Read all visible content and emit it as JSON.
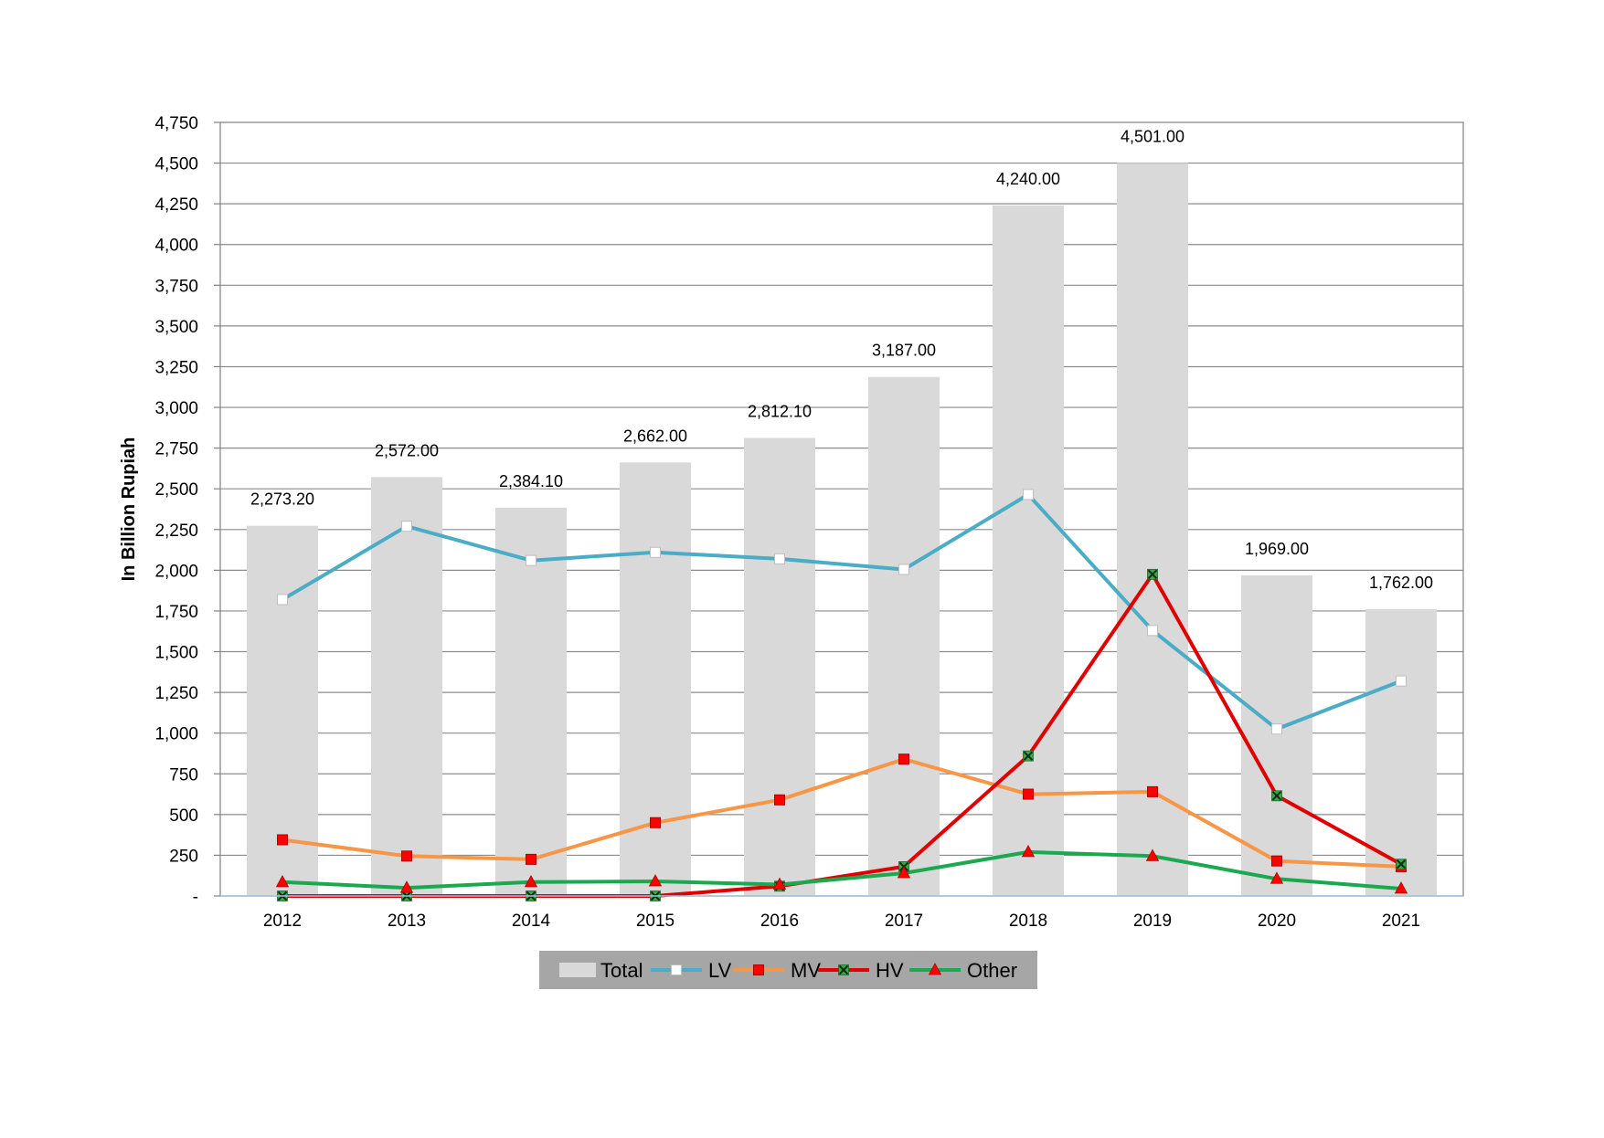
{
  "chart_data": {
    "type": "bar",
    "title": "",
    "xlabel": "",
    "ylabel": "In Billion Rupiah",
    "ylim": [
      0,
      4750
    ],
    "ytick_step": 250,
    "yticks": [
      "-",
      "250",
      "500",
      "750",
      "1,000",
      "1,250",
      "1,500",
      "1,750",
      "2,000",
      "2,250",
      "2,500",
      "2,750",
      "3,000",
      "3,250",
      "3,500",
      "3,750",
      "4,000",
      "4,250",
      "4,500",
      "4,750"
    ],
    "grid": true,
    "legend_position": "bottom",
    "categories": [
      "2012",
      "2013",
      "2014",
      "2015",
      "2016",
      "2017",
      "2018",
      "2019",
      "2020",
      "2021"
    ],
    "series": [
      {
        "name": "Total",
        "kind": "bar",
        "color": "#d9d9d9",
        "values": [
          2273.2,
          2572.0,
          2384.1,
          2662.0,
          2812.1,
          3187.0,
          4240.0,
          4501.0,
          1969.0,
          1762.0
        ],
        "labels": [
          "2,273.20",
          "2,572.00",
          "2,384.10",
          "2,662.00",
          "2,812.10",
          "3,187.00",
          "4,240.00",
          "4,501.00",
          "1,969.00",
          "1,762.00"
        ]
      },
      {
        "name": "LV",
        "kind": "line",
        "color": "#4bacc6",
        "marker": "square",
        "marker_color": "#ffffff",
        "values": [
          1820,
          2270,
          2060,
          2110,
          2070,
          2005,
          2465,
          1630,
          1025,
          1320
        ]
      },
      {
        "name": "MV",
        "kind": "line",
        "color": "#f79646",
        "marker": "square",
        "marker_color": "#ff0000",
        "values": [
          345,
          245,
          225,
          450,
          590,
          840,
          625,
          640,
          215,
          180
        ]
      },
      {
        "name": "HV",
        "kind": "line",
        "color": "#e00000",
        "marker": "x",
        "marker_color": "#1a7a3a",
        "values": [
          0,
          0,
          0,
          0,
          60,
          180,
          860,
          1975,
          615,
          195
        ]
      },
      {
        "name": "Other",
        "kind": "line",
        "color": "#1aa94e",
        "marker": "triangle",
        "marker_color": "#ff0000",
        "values": [
          85,
          50,
          85,
          90,
          70,
          140,
          270,
          245,
          105,
          45
        ]
      }
    ]
  }
}
